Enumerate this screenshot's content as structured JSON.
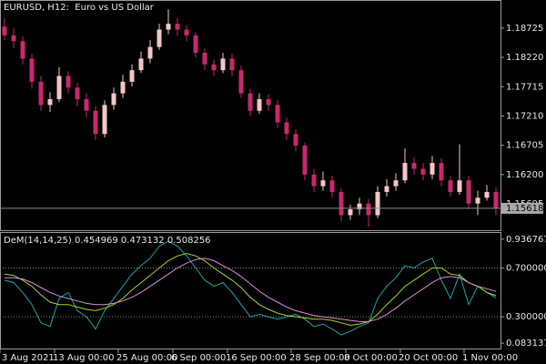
{
  "chart_data": [
    {
      "type": "candlestick",
      "title": "EURUSD, H12:  Euro vs US Dollar",
      "categories": [
        "3 Aug 2021",
        null,
        null,
        null,
        null,
        null,
        "13 Aug 00:00",
        null,
        null,
        null,
        null,
        null,
        null,
        "25 Aug 00:00",
        null,
        null,
        null,
        null,
        null,
        "6 Sep 00:00",
        null,
        null,
        null,
        null,
        null,
        "16 Sep 00:00",
        null,
        null,
        null,
        null,
        null,
        null,
        "28 Sep 00:00",
        null,
        null,
        null,
        null,
        null,
        "8 Oct 00:00",
        null,
        null,
        null,
        null,
        null,
        "20 Oct 00:00",
        null,
        null,
        null,
        null,
        null,
        null,
        "1 Nov 00:00",
        null,
        null,
        null
      ],
      "open": [
        1.1875,
        1.186,
        1.185,
        1.182,
        1.178,
        1.174,
        1.175,
        1.179,
        1.177,
        1.175,
        1.173,
        1.169,
        1.174,
        1.176,
        1.178,
        1.18,
        1.182,
        1.184,
        1.187,
        1.188,
        1.187,
        1.186,
        1.183,
        1.181,
        1.18,
        1.182,
        1.18,
        1.176,
        1.173,
        1.175,
        1.174,
        1.171,
        1.169,
        1.167,
        1.162,
        1.16,
        1.161,
        1.159,
        1.155,
        1.156,
        1.157,
        1.155,
        1.159,
        1.16,
        1.161,
        1.164,
        1.163,
        1.162,
        1.164,
        1.161,
        1.159,
        1.161,
        1.157,
        1.158,
        1.159
      ],
      "high": [
        1.189,
        1.1872,
        1.1858,
        1.1828,
        1.179,
        1.1762,
        1.1805,
        1.1798,
        1.1778,
        1.176,
        1.1738,
        1.1748,
        1.177,
        1.1792,
        1.181,
        1.1832,
        1.1852,
        1.188,
        1.1905,
        1.189,
        1.1878,
        1.1865,
        1.1838,
        1.1818,
        1.183,
        1.1828,
        1.1808,
        1.1768,
        1.176,
        1.1758,
        1.1748,
        1.1718,
        1.1698,
        1.1675,
        1.163,
        1.1625,
        1.1618,
        1.1596,
        1.1568,
        1.158,
        1.1578,
        1.16,
        1.1612,
        1.1622,
        1.1665,
        1.165,
        1.164,
        1.1652,
        1.1648,
        1.1618,
        1.1672,
        1.1618,
        1.1592,
        1.1602,
        1.1598
      ],
      "low": [
        1.1852,
        1.1838,
        1.181,
        1.1768,
        1.173,
        1.1728,
        1.1745,
        1.176,
        1.1738,
        1.1718,
        1.168,
        1.1684,
        1.1732,
        1.1752,
        1.1772,
        1.1795,
        1.1812,
        1.1835,
        1.1862,
        1.186,
        1.185,
        1.1822,
        1.18,
        1.179,
        1.1795,
        1.179,
        1.1752,
        1.1722,
        1.1725,
        1.173,
        1.17,
        1.168,
        1.166,
        1.161,
        1.159,
        1.1592,
        1.158,
        1.154,
        1.1542,
        1.155,
        1.153,
        1.1545,
        1.1582,
        1.1592,
        1.1605,
        1.162,
        1.161,
        1.1612,
        1.16,
        1.1582,
        1.1585,
        1.156,
        1.155,
        1.1575,
        1.155
      ],
      "close": [
        1.186,
        1.185,
        1.182,
        1.178,
        1.174,
        1.175,
        1.179,
        1.177,
        1.175,
        1.173,
        1.169,
        1.174,
        1.176,
        1.178,
        1.18,
        1.182,
        1.184,
        1.187,
        1.188,
        1.187,
        1.186,
        1.183,
        1.181,
        1.18,
        1.182,
        1.18,
        1.176,
        1.173,
        1.175,
        1.174,
        1.171,
        1.169,
        1.167,
        1.162,
        1.16,
        1.161,
        1.159,
        1.155,
        1.156,
        1.157,
        1.155,
        1.159,
        1.16,
        1.161,
        1.164,
        1.163,
        1.162,
        1.164,
        1.161,
        1.159,
        1.161,
        1.157,
        1.158,
        1.159,
        1.15618
      ],
      "up_color": "#f4c6c6",
      "down_color": "#c8286e",
      "last_price": 1.15618,
      "ylim": [
        1.1524,
        1.1921
      ],
      "yticks": [
        1.18725,
        {
          "value": 1.1822,
          "label": "1.18220"
        },
        1.17715,
        {
          "value": 1.1721,
          "label": "1.17210"
        },
        1.16705,
        {
          "value": 1.162,
          "label": "1.16200"
        },
        1.15695
      ]
    },
    {
      "type": "line",
      "title": "DeM(14,14,25)",
      "series": [
        {
          "color": "#1fa5a5",
          "values": [
            0.6,
            0.58,
            0.5,
            0.4,
            0.25,
            0.22,
            0.45,
            0.5,
            0.35,
            0.3,
            0.2,
            0.35,
            0.45,
            0.55,
            0.65,
            0.72,
            0.78,
            0.88,
            0.92,
            0.88,
            0.8,
            0.7,
            0.6,
            0.55,
            0.58,
            0.5,
            0.4,
            0.3,
            0.32,
            0.3,
            0.28,
            0.3,
            0.32,
            0.28,
            0.22,
            0.24,
            0.2,
            0.15,
            0.18,
            0.22,
            0.25,
            0.45,
            0.55,
            0.62,
            0.72,
            0.7,
            0.75,
            0.78,
            0.6,
            0.45,
            0.65,
            0.4,
            0.55,
            0.5,
            0.454969
          ]
        },
        {
          "color": "#a8d62a",
          "values": [
            0.65,
            0.64,
            0.6,
            0.55,
            0.48,
            0.42,
            0.4,
            0.4,
            0.38,
            0.36,
            0.35,
            0.37,
            0.4,
            0.45,
            0.52,
            0.58,
            0.64,
            0.7,
            0.76,
            0.8,
            0.82,
            0.8,
            0.76,
            0.7,
            0.65,
            0.6,
            0.54,
            0.46,
            0.4,
            0.36,
            0.33,
            0.31,
            0.3,
            0.29,
            0.28,
            0.28,
            0.27,
            0.25,
            0.23,
            0.24,
            0.26,
            0.32,
            0.4,
            0.47,
            0.55,
            0.6,
            0.65,
            0.7,
            0.7,
            0.65,
            0.64,
            0.58,
            0.55,
            0.5,
            0.473132
          ]
        },
        {
          "color": "#d88fd8",
          "values": [
            0.62,
            0.62,
            0.61,
            0.58,
            0.54,
            0.5,
            0.47,
            0.45,
            0.43,
            0.41,
            0.4,
            0.4,
            0.41,
            0.43,
            0.46,
            0.5,
            0.55,
            0.6,
            0.65,
            0.7,
            0.74,
            0.77,
            0.78,
            0.76,
            0.72,
            0.68,
            0.63,
            0.57,
            0.51,
            0.46,
            0.42,
            0.38,
            0.35,
            0.33,
            0.31,
            0.3,
            0.29,
            0.28,
            0.27,
            0.26,
            0.26,
            0.28,
            0.32,
            0.37,
            0.43,
            0.48,
            0.53,
            0.58,
            0.62,
            0.63,
            0.62,
            0.58,
            0.55,
            0.53,
            0.508256
          ]
        }
      ],
      "levels": [
        0.7,
        0.3
      ],
      "ylim": [
        0.039,
        0.988
      ],
      "yticks": [
        0.936767,
        {
          "value": 0.7,
          "label": "0.700000"
        },
        {
          "value": 0.3,
          "label": "0.300000"
        },
        0.083137
      ]
    }
  ]
}
